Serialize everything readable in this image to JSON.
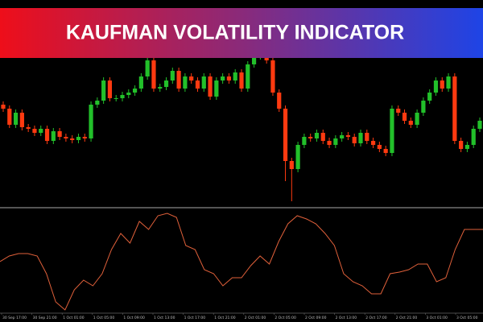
{
  "chart_data": {
    "type": "candlestick",
    "title": "KAUFMAN VOLATILITY INDICATOR",
    "up_color": "#22c02a",
    "down_color": "#ff3a10",
    "ylim": [
      0,
      255
    ],
    "open": [
      125,
      120,
      100,
      115,
      97,
      95,
      90,
      95,
      80,
      92,
      85,
      83,
      81,
      85,
      83,
      125,
      130,
      155,
      133,
      133,
      137,
      140,
      145,
      160,
      180,
      145,
      147,
      155,
      167,
      145,
      160,
      155,
      145,
      160,
      135,
      155,
      160,
      155,
      165,
      145,
      175,
      185,
      190,
      180,
      140,
      120,
      55,
      45,
      75,
      85,
      83,
      90,
      80,
      75,
      83,
      87,
      85,
      77,
      90,
      80,
      75,
      70,
      65,
      120,
      115,
      105,
      100,
      115,
      130,
      140,
      155,
      145,
      160,
      80,
      70,
      75,
      95
    ],
    "high": [
      129,
      124,
      119,
      119,
      101,
      99,
      99,
      99,
      96,
      96,
      89,
      87,
      89,
      89,
      129,
      134,
      159,
      159,
      137,
      141,
      144,
      149,
      164,
      184,
      184,
      151,
      159,
      171,
      171,
      164,
      164,
      159,
      164,
      164,
      159,
      164,
      164,
      169,
      169,
      179,
      189,
      194,
      194,
      184,
      144,
      124,
      59,
      79,
      89,
      89,
      94,
      94,
      84,
      87,
      91,
      91,
      89,
      94,
      94,
      84,
      79,
      74,
      124,
      124,
      119,
      109,
      119,
      134,
      144,
      159,
      159,
      164,
      164,
      84,
      79,
      99,
      109
    ],
    "low": [
      116,
      96,
      96,
      93,
      91,
      86,
      86,
      76,
      76,
      81,
      79,
      77,
      77,
      79,
      79,
      121,
      126,
      129,
      129,
      129,
      133,
      136,
      141,
      156,
      141,
      141,
      143,
      151,
      141,
      141,
      151,
      141,
      141,
      131,
      131,
      151,
      151,
      151,
      141,
      141,
      171,
      181,
      176,
      136,
      116,
      30,
      5,
      41,
      71,
      79,
      79,
      76,
      71,
      71,
      79,
      81,
      73,
      73,
      76,
      71,
      66,
      61,
      61,
      111,
      101,
      96,
      96,
      111,
      126,
      136,
      141,
      141,
      76,
      66,
      66,
      71,
      91
    ],
    "close": [
      120,
      100,
      115,
      97,
      95,
      90,
      95,
      80,
      92,
      85,
      83,
      81,
      85,
      83,
      125,
      130,
      155,
      133,
      133,
      137,
      140,
      145,
      160,
      180,
      145,
      147,
      155,
      167,
      145,
      160,
      155,
      145,
      160,
      135,
      155,
      160,
      155,
      165,
      145,
      175,
      185,
      190,
      180,
      140,
      120,
      55,
      45,
      75,
      85,
      83,
      90,
      80,
      75,
      83,
      87,
      85,
      77,
      90,
      80,
      75,
      70,
      65,
      120,
      115,
      105,
      100,
      115,
      130,
      140,
      155,
      145,
      160,
      80,
      70,
      75,
      95,
      105
    ],
    "indicator": {
      "color": "#e0603a",
      "ylim": [
        0,
        130
      ],
      "values": [
        63,
        70,
        73,
        73,
        70,
        48,
        13,
        3,
        28,
        40,
        33,
        48,
        78,
        98,
        86,
        113,
        103,
        120,
        123,
        118,
        83,
        78,
        53,
        48,
        33,
        43,
        43,
        58,
        70,
        60,
        88,
        110,
        120,
        116,
        110,
        98,
        83,
        48,
        38,
        33,
        23,
        23,
        48,
        50,
        53,
        60,
        60,
        38,
        43,
        78,
        103,
        103,
        103
      ]
    },
    "time_labels": [
      "30 Sep 17:00",
      "30 Sep 21:00",
      "1 Oct 01:00",
      "1 Oct 05:00",
      "1 Oct 09:00",
      "1 Oct 13:00",
      "1 Oct 17:00",
      "1 Oct 21:00",
      "2 Oct 01:00",
      "2 Oct 05:00",
      "2 Oct 09:00",
      "2 Oct 13:00",
      "2 Oct 17:00",
      "2 Oct 21:00",
      "3 Oct 01:00",
      "3 Oct 05:00"
    ]
  }
}
